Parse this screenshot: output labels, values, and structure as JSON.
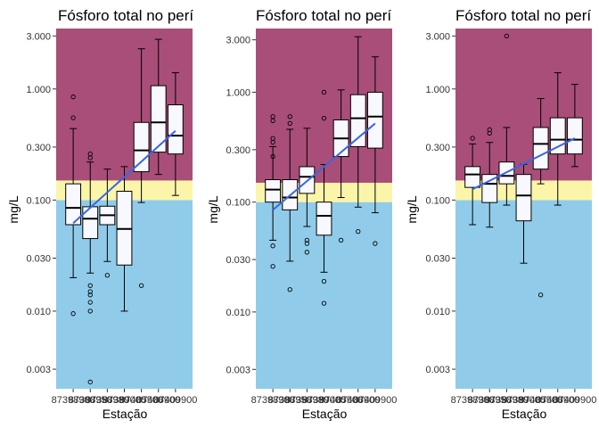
{
  "colors": {
    "band_high": "#A94E78",
    "band_mid": "#FAF5A8",
    "band_low": "#90CCEA",
    "box_fill": "#F8F8FF",
    "trend": "#3A66E0",
    "stroke": "#000000"
  },
  "chart_data": [
    {
      "type": "boxplot",
      "title": "Fósforo total no perí",
      "xlabel": "Estação",
      "ylabel": "mg/L",
      "yscale": "log10",
      "ylim": [
        0.002,
        3.5
      ],
      "yticks": [
        0.003,
        0.01,
        0.03,
        0.1,
        0.3,
        1.0,
        3.0
      ],
      "ytick_labels": [
        "0.003",
        "0.010",
        "0.030",
        "0.100",
        "0.300",
        "1.000",
        "3.000"
      ],
      "xtick_labels": [
        "87398900",
        "87398950",
        "87398980",
        "87399000",
        "87405500",
        "87406900",
        "87409900"
      ],
      "bands": [
        {
          "from": 0.002,
          "to": 0.1,
          "color": "band_low"
        },
        {
          "from": 0.1,
          "to": 0.15,
          "color": "band_mid"
        },
        {
          "from": 0.15,
          "to": 3.5,
          "color": "band_high"
        }
      ],
      "boxes": [
        {
          "min": 0.02,
          "q1": 0.06,
          "median": 0.085,
          "q3": 0.14,
          "max": 0.44,
          "outliers": [
            0.85,
            0.55,
            0.0095
          ]
        },
        {
          "min": 0.022,
          "q1": 0.045,
          "median": 0.068,
          "q3": 0.087,
          "max": 0.22,
          "outliers": [
            0.26,
            0.24,
            0.017,
            0.015,
            0.014,
            0.012,
            0.01,
            0.0023
          ]
        },
        {
          "min": 0.028,
          "q1": 0.06,
          "median": 0.073,
          "q3": 0.088,
          "max": 0.19,
          "outliers": [
            0.021
          ]
        },
        {
          "min": 0.01,
          "q1": 0.026,
          "median": 0.055,
          "q3": 0.12,
          "max": 0.2,
          "outliers": []
        },
        {
          "min": 0.095,
          "q1": 0.18,
          "median": 0.28,
          "q3": 0.5,
          "max": 2.3,
          "outliers": [
            0.017
          ]
        },
        {
          "min": 0.17,
          "q1": 0.27,
          "median": 0.5,
          "q3": 1.07,
          "max": 2.8,
          "outliers": []
        },
        {
          "min": 0.11,
          "q1": 0.26,
          "median": 0.38,
          "q3": 0.72,
          "max": 1.4,
          "outliers": []
        }
      ],
      "trend": {
        "from": 0.062,
        "to": 0.42
      }
    },
    {
      "type": "boxplot",
      "title": "Fósforo total no perí",
      "xlabel": "Estação",
      "ylabel": "mg/L",
      "yscale": "log10",
      "ylim": [
        0.002,
        3.8
      ],
      "yticks": [
        0.003,
        0.01,
        0.03,
        0.1,
        0.3,
        1.0,
        3.0
      ],
      "ytick_labels": [
        "0.003",
        "0.010",
        "0.030",
        "0.100",
        "0.300",
        "1.000",
        "3.000"
      ],
      "xtick_labels": [
        "87398900",
        "87398950",
        "87398980",
        "87399000",
        "87405500",
        "87406900",
        "87409900"
      ],
      "bands": [
        {
          "from": 0.002,
          "to": 0.1,
          "color": "band_low"
        },
        {
          "from": 0.1,
          "to": 0.15,
          "color": "band_mid"
        },
        {
          "from": 0.15,
          "to": 3.8,
          "color": "band_high"
        }
      ],
      "boxes": [
        {
          "min": 0.045,
          "q1": 0.1,
          "median": 0.13,
          "q3": 0.16,
          "max": 0.32,
          "outliers": [
            0.6,
            0.55,
            0.38,
            0.35,
            0.26,
            0.04,
            0.026
          ]
        },
        {
          "min": 0.029,
          "q1": 0.085,
          "median": 0.11,
          "q3": 0.16,
          "max": 0.46,
          "outliers": [
            0.6,
            0.52,
            0.016
          ]
        },
        {
          "min": 0.06,
          "q1": 0.12,
          "median": 0.17,
          "q3": 0.21,
          "max": 0.47,
          "outliers": [
            0.045,
            0.042,
            0.035
          ]
        },
        {
          "min": 0.023,
          "q1": 0.05,
          "median": 0.075,
          "q3": 0.1,
          "max": 0.22,
          "outliers": [
            1.0,
            0.58,
            0.019,
            0.012
          ]
        },
        {
          "min": 0.11,
          "q1": 0.26,
          "median": 0.38,
          "q3": 0.56,
          "max": 1.05,
          "outliers": [
            0.045
          ]
        },
        {
          "min": 0.09,
          "q1": 0.32,
          "median": 0.58,
          "q3": 0.95,
          "max": 3.2,
          "outliers": [
            0.054
          ]
        },
        {
          "min": 0.08,
          "q1": 0.31,
          "median": 0.6,
          "q3": 1.0,
          "max": 2.1,
          "outliers": [
            0.042
          ]
        }
      ],
      "trend": {
        "from": 0.085,
        "to": 0.52
      }
    },
    {
      "type": "boxplot",
      "title": "Fósforo total no perí",
      "xlabel": "Estação",
      "ylabel": "mg/L",
      "yscale": "log10",
      "ylim": [
        0.002,
        3.5
      ],
      "yticks": [
        0.003,
        0.01,
        0.03,
        0.1,
        0.3,
        1.0,
        3.0
      ],
      "ytick_labels": [
        "0.003",
        "0.010",
        "0.030",
        "0.100",
        "0.300",
        "1.000",
        "3.000"
      ],
      "xtick_labels": [
        "87398900",
        "87398950",
        "87398980",
        "87399000",
        "87405500",
        "87406900",
        "87409900"
      ],
      "bands": [
        {
          "from": 0.002,
          "to": 0.1,
          "color": "band_low"
        },
        {
          "from": 0.1,
          "to": 0.15,
          "color": "band_mid"
        },
        {
          "from": 0.15,
          "to": 3.5,
          "color": "band_high"
        }
      ],
      "boxes": [
        {
          "min": 0.06,
          "q1": 0.13,
          "median": 0.17,
          "q3": 0.2,
          "max": 0.32,
          "outliers": [
            0.36
          ]
        },
        {
          "min": 0.057,
          "q1": 0.095,
          "median": 0.14,
          "q3": 0.17,
          "max": 0.33,
          "outliers": [
            0.43,
            0.4
          ]
        },
        {
          "min": 0.09,
          "q1": 0.14,
          "median": 0.165,
          "q3": 0.22,
          "max": 0.45,
          "outliers": [
            3.0
          ]
        },
        {
          "min": 0.027,
          "q1": 0.065,
          "median": 0.11,
          "q3": 0.17,
          "max": 0.21,
          "outliers": []
        },
        {
          "min": 0.14,
          "q1": 0.19,
          "median": 0.32,
          "q3": 0.45,
          "max": 0.82,
          "outliers": [
            0.014
          ]
        },
        {
          "min": 0.09,
          "q1": 0.26,
          "median": 0.35,
          "q3": 0.55,
          "max": 1.4,
          "outliers": []
        },
        {
          "min": 0.2,
          "q1": 0.26,
          "median": 0.35,
          "q3": 0.55,
          "max": 1.1,
          "outliers": []
        }
      ],
      "trend": {
        "from": 0.125,
        "to": 0.36
      }
    }
  ]
}
